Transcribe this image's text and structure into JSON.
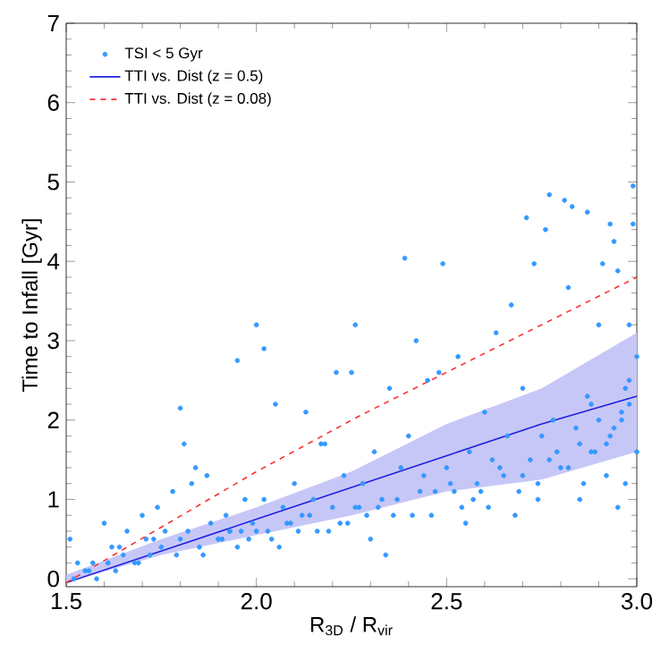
{
  "chart_data": {
    "type": "scatter",
    "xlabel": "R$_{3D}$ / R$_{vir}$",
    "ylabel": "Time to Infall [Gyr]",
    "xlim": [
      1.5,
      3.0
    ],
    "ylim": [
      -0.1,
      7
    ],
    "xticks": [
      1.5,
      {
        "value": 2,
        "label": "2.0"
      },
      2.5,
      {
        "value": 3,
        "label": "3.0"
      }
    ],
    "yticks": [
      0,
      1,
      2,
      3,
      4,
      5,
      6,
      7
    ],
    "legend": "top left",
    "grid": false,
    "series": [
      {
        "name": "TSI < 5 Gyr",
        "marker": "circle",
        "color": "#3399ff",
        "x": [
          1.51,
          1.52,
          1.53,
          1.55,
          1.57,
          1.58,
          1.6,
          1.61,
          1.62,
          1.63,
          1.65,
          1.66,
          1.68,
          1.7,
          1.71,
          1.72,
          1.74,
          1.75,
          1.76,
          1.78,
          1.79,
          1.8,
          1.8,
          1.81,
          1.82,
          1.84,
          1.85,
          1.87,
          1.88,
          1.9,
          1.92,
          1.93,
          1.95,
          1.95,
          1.97,
          1.99,
          2.0,
          2.0,
          2.02,
          2.02,
          2.04,
          2.05,
          2.07,
          2.08,
          2.1,
          2.12,
          2.13,
          2.15,
          2.16,
          2.18,
          2.2,
          2.21,
          2.23,
          2.25,
          2.26,
          2.26,
          2.28,
          2.3,
          2.31,
          2.33,
          2.35,
          2.36,
          2.38,
          2.39,
          2.4,
          2.42,
          2.43,
          2.45,
          2.46,
          2.48,
          2.49,
          2.5,
          2.52,
          2.53,
          2.55,
          2.56,
          2.58,
          2.6,
          2.61,
          2.63,
          2.65,
          2.66,
          2.67,
          2.68,
          2.7,
          2.71,
          2.72,
          2.73,
          2.74,
          2.76,
          2.77,
          2.78,
          2.8,
          2.81,
          2.82,
          2.83,
          2.84,
          2.85,
          2.87,
          2.88,
          2.89,
          2.9,
          2.91,
          2.92,
          2.93,
          2.94,
          2.95,
          2.96,
          2.97,
          2.98,
          2.99,
          2.99,
          3.0,
          3.0,
          1.56,
          1.64,
          1.69,
          1.73,
          1.83,
          1.86,
          1.91,
          1.96,
          2.06,
          2.11,
          2.17,
          2.22,
          2.27,
          2.34,
          2.44,
          2.54,
          2.62,
          2.69,
          2.75,
          2.86,
          2.95,
          2.97,
          1.9,
          1.93,
          1.98,
          2.03,
          2.09,
          2.14,
          2.19,
          2.24,
          2.29,
          2.32,
          2.37,
          2.41,
          2.47,
          2.51,
          2.57,
          2.59,
          2.64,
          2.7,
          2.74,
          2.77,
          2.79,
          2.82,
          2.85,
          2.88,
          2.9,
          2.92,
          2.94,
          2.96,
          2.98,
          2.93,
          2.98,
          2.87
        ],
        "values": [
          0.5,
          0.0,
          0.2,
          0.1,
          0.2,
          0.0,
          0.7,
          0.2,
          0.4,
          0.1,
          0.3,
          0.6,
          0.2,
          0.8,
          0.5,
          0.3,
          0.9,
          0.4,
          0.6,
          1.1,
          0.3,
          2.15,
          0.5,
          1.7,
          0.6,
          1.4,
          0.4,
          1.3,
          0.7,
          0.5,
          0.8,
          0.6,
          2.75,
          0.4,
          1.0,
          0.7,
          3.2,
          0.6,
          2.9,
          1.0,
          0.5,
          2.2,
          0.9,
          0.7,
          1.2,
          0.8,
          2.1,
          1.0,
          0.6,
          1.7,
          0.9,
          2.6,
          1.3,
          2.6,
          3.2,
          0.9,
          1.2,
          0.5,
          1.6,
          1.0,
          2.4,
          0.8,
          1.4,
          4.04,
          1.8,
          3.0,
          1.1,
          2.5,
          0.8,
          2.6,
          3.97,
          1.4,
          1.1,
          2.8,
          0.7,
          1.6,
          1.2,
          2.1,
          0.9,
          3.1,
          1.3,
          1.8,
          3.45,
          0.8,
          2.4,
          4.55,
          1.5,
          3.97,
          1.0,
          4.4,
          4.84,
          2.0,
          1.4,
          4.77,
          3.67,
          4.69,
          1.9,
          1.0,
          4.62,
          2.2,
          1.6,
          3.2,
          3.97,
          1.3,
          4.47,
          4.25,
          3.88,
          2.1,
          1.2,
          3.2,
          4.95,
          4.47,
          2.8,
          1.6,
          0.1,
          0.4,
          0.2,
          0.5,
          1.2,
          0.3,
          0.5,
          0.6,
          0.4,
          0.6,
          1.7,
          0.7,
          0.9,
          0.3,
          1.3,
          0.9,
          1.5,
          1.1,
          1.8,
          1.2,
          0.9,
          2.4,
          0.5,
          0.6,
          0.5,
          0.6,
          0.7,
          0.8,
          0.6,
          0.7,
          0.8,
          0.9,
          1.0,
          0.8,
          1.1,
          1.2,
          1.0,
          1.1,
          1.4,
          1.3,
          1.2,
          1.5,
          1.6,
          1.4,
          1.7,
          1.6,
          2.0,
          1.7,
          1.9,
          2.0,
          2.2,
          1.8,
          2.5,
          2.3
        ]
      },
      {
        "name": "TTI vs. Dist (z = 0.5)",
        "type": "line",
        "line_style": "solid",
        "color": "#2020e0",
        "x": [
          1.5,
          1.75,
          2.0,
          2.25,
          2.5,
          2.75,
          3.0
        ],
        "values": [
          -0.05,
          0.35,
          0.75,
          1.15,
          1.55,
          1.95,
          2.3
        ],
        "lower": [
          -0.05,
          0.3,
          0.55,
          0.8,
          1.1,
          1.25,
          1.6
        ],
        "upper": [
          0.05,
          0.5,
          0.9,
          1.35,
          1.95,
          2.4,
          3.1
        ]
      },
      {
        "name": "TTI vs. Dist (z = 0.08)",
        "type": "line",
        "line_style": "dashed",
        "color": "#ff3030",
        "x": [
          1.5,
          2.0,
          2.27,
          3.0
        ],
        "values": [
          -0.05,
          1.35,
          2.05,
          3.8
        ]
      }
    ]
  }
}
